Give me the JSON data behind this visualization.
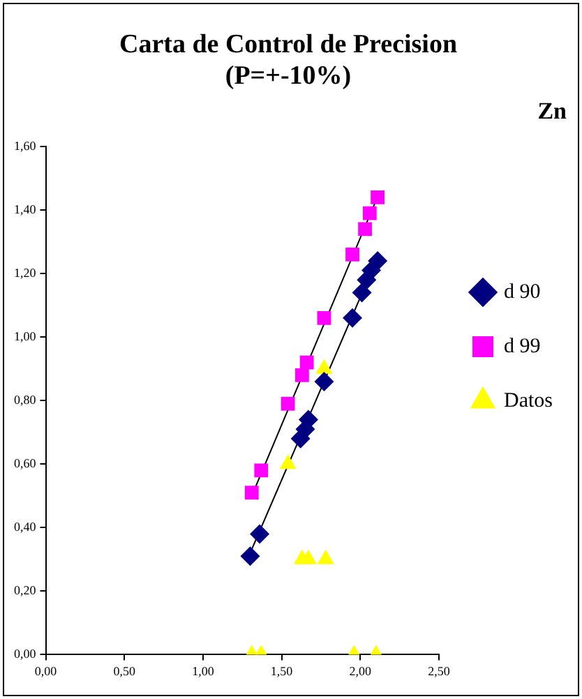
{
  "chart_data": {
    "type": "scatter",
    "title": "Carta de Control de Precision\n(P=+-10%)",
    "subtitle": "Zn",
    "xlim": [
      0,
      2.5
    ],
    "ylim": [
      0,
      1.6
    ],
    "xticks": [
      {
        "value": 0,
        "label": "0,00"
      },
      {
        "value": 0.5,
        "label": "0,50"
      },
      {
        "value": 1,
        "label": "1,00"
      },
      {
        "value": 1.5,
        "label": "1,50"
      },
      {
        "value": 2,
        "label": "2,00"
      },
      {
        "value": 2.5,
        "label": "2,50"
      }
    ],
    "yticks": [
      {
        "value": 0,
        "label": "0,00"
      },
      {
        "value": 0.2,
        "label": "0,20"
      },
      {
        "value": 0.4,
        "label": "0,40"
      },
      {
        "value": 0.6,
        "label": "0,60"
      },
      {
        "value": 0.8,
        "label": "0,80"
      },
      {
        "value": 1,
        "label": "1,00"
      },
      {
        "value": 1.2,
        "label": "1,20"
      },
      {
        "value": 1.4,
        "label": "1,40"
      },
      {
        "value": 1.6,
        "label": "1,60"
      }
    ],
    "grid": false,
    "legend": "right",
    "series": [
      {
        "name": "d 90",
        "color": "#000080",
        "marker": "diamond",
        "x": [
          1.3,
          1.36,
          1.62,
          1.65,
          1.67,
          1.77,
          1.95,
          2.01,
          2.04,
          2.07,
          2.11
        ],
        "values": [
          0.31,
          0.38,
          0.68,
          0.71,
          0.74,
          0.86,
          1.06,
          1.14,
          1.18,
          1.21,
          1.24
        ]
      },
      {
        "name": "d 99",
        "color": "#ff00ff",
        "marker": "square",
        "x": [
          1.31,
          1.37,
          1.54,
          1.63,
          1.66,
          1.77,
          1.95,
          2.03,
          2.06,
          2.11
        ],
        "values": [
          0.51,
          0.58,
          0.79,
          0.88,
          0.92,
          1.06,
          1.26,
          1.34,
          1.39,
          1.44
        ]
      },
      {
        "name": "Datos",
        "color": "#ffff00",
        "marker": "triangle",
        "x": [
          1.31,
          1.37,
          1.54,
          1.63,
          1.67,
          1.78,
          1.77,
          1.96,
          2.1
        ],
        "values": [
          0,
          0,
          0.6,
          0.3,
          0.3,
          0.3,
          0.9,
          0,
          0
        ]
      },
      {
        "type": "line",
        "color": "#000000",
        "marker": "none",
        "x": [
          1.31,
          2.1
        ],
        "values": [
          0.5,
          1.43
        ]
      },
      {
        "type": "line",
        "color": "#000000",
        "marker": "none",
        "x": [
          1.3,
          2.1
        ],
        "values": [
          0.32,
          1.24
        ]
      }
    ]
  }
}
